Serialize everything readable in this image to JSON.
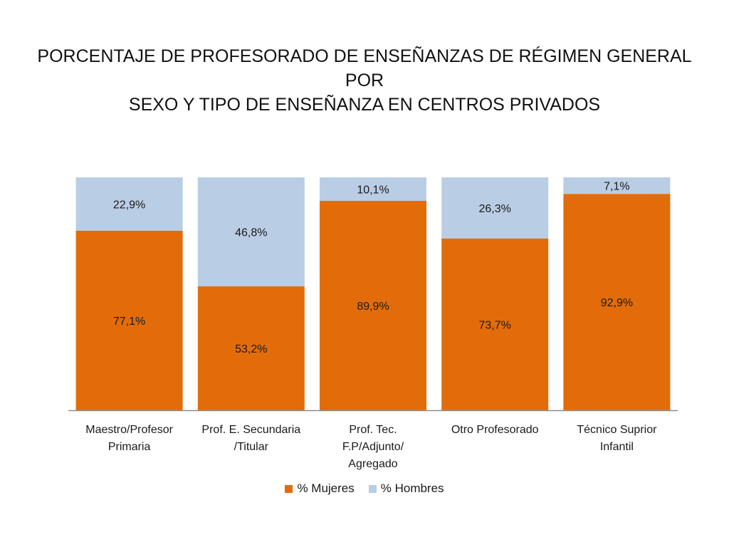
{
  "chart_data": {
    "type": "bar",
    "stacked": true,
    "title_lines": [
      "PORCENTAJE DE PROFESORADO DE ENSEÑANZAS DE RÉGIMEN GENERAL POR",
      "SEXO Y TIPO DE ENSEÑANZA EN CENTROS PRIVADOS"
    ],
    "categories": [
      [
        "Maestro/Profesor",
        "Primaria"
      ],
      [
        "Prof. E. Secundaria",
        "/Titular"
      ],
      [
        "Prof. Tec.",
        "F.P/Adjunto/",
        "Agregado"
      ],
      [
        "Otro Profesorado"
      ],
      [
        "Técnico Suprior",
        "Infantil"
      ]
    ],
    "series": [
      {
        "name": "% Mujeres",
        "color": "#e36c0a",
        "values": [
          77.1,
          53.2,
          89.9,
          73.7,
          92.9
        ],
        "labels": [
          "77,1%",
          "53,2%",
          "89,9%",
          "73,7%",
          "92,9%"
        ]
      },
      {
        "name": "% Hombres",
        "color": "#b9cde5",
        "values": [
          22.9,
          46.8,
          10.1,
          26.3,
          7.1
        ],
        "labels": [
          "22,9%",
          "46,8%",
          "10,1%",
          "26,3%",
          "7,1%"
        ]
      }
    ],
    "ylim": [
      0,
      100
    ],
    "grid": false,
    "legend_position": "bottom"
  }
}
